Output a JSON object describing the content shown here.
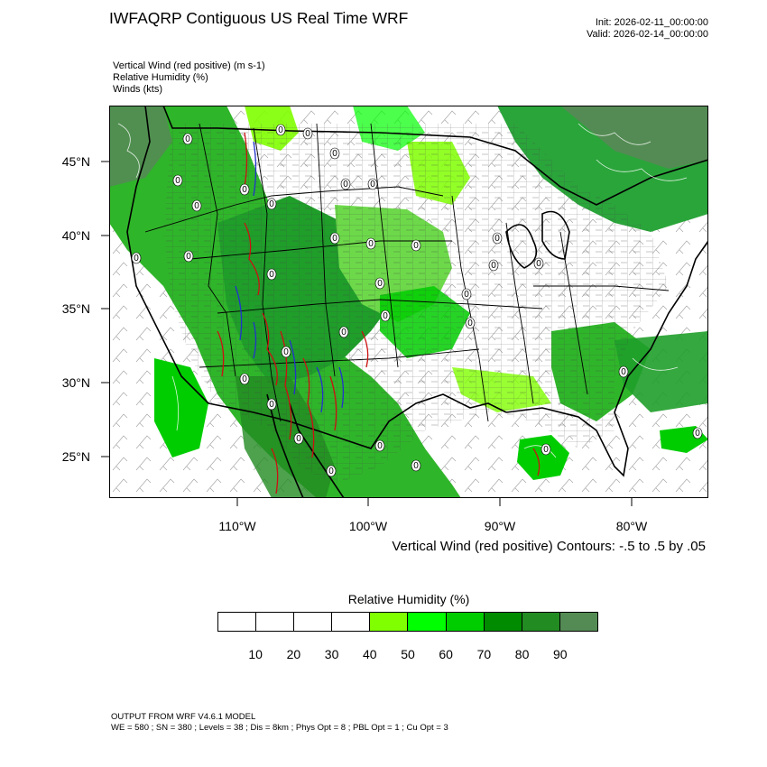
{
  "header": {
    "title": "IWFAQRP Contiguous US Real Time WRF",
    "init": "Init: 2026-02-11_00:00:00",
    "valid": "Valid: 2026-02-14_00:00:00"
  },
  "fields": [
    "Vertical Wind (red positive)   (m s-1)",
    "Relative Humidity   (%)",
    "Winds   (kts)"
  ],
  "map": {
    "lat_labels": [
      "45°N",
      "40°N",
      "35°N",
      "30°N",
      "25°N"
    ],
    "lon_labels": [
      "110°W",
      "100°W",
      "90°W",
      "80°W"
    ],
    "contour_label": "0",
    "contour_note": "Vertical Wind (red positive) Contours: -.5 to .5 by .05",
    "colors": {
      "humid_green": "#3fcc1f",
      "humid_dark": "#1a9a1a",
      "updraft": "#cc1111",
      "downdraft": "#2233cc",
      "border": "#000000"
    }
  },
  "colorbar": {
    "title": "Relative Humidity  (%)",
    "labels": [
      "10",
      "20",
      "30",
      "40",
      "50",
      "60",
      "70",
      "80",
      "90"
    ],
    "colors": [
      "#ffffff",
      "#ffffff",
      "#ffffff",
      "#ffffff",
      "#7fff00",
      "#00ff00",
      "#00cd00",
      "#008b00",
      "#228b22",
      "#548b54"
    ]
  },
  "footer": {
    "line1": "OUTPUT FROM WRF V4.6.1 MODEL",
    "line2": "WE = 580 ; SN = 380 ; Levels = 38 ; Dis = 8km ; Phys Opt = 8 ; PBL Opt = 1 ; Cu Opt = 3"
  }
}
